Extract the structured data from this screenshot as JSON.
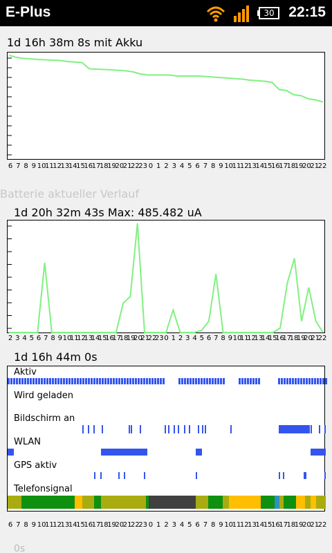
{
  "status_bar": {
    "carrier": "E-Plus",
    "battery_level": "30",
    "time": "22:15",
    "icons": [
      "wifi-icon",
      "signal-strength-icon",
      "battery-icon"
    ]
  },
  "history_chart": {
    "title": "1d 16h 38m 8s mit Akku",
    "line_color": "#80f080",
    "x_ticks": [
      "6",
      "7",
      "8",
      "9",
      "10",
      "11",
      "12",
      "13",
      "14",
      "15",
      "16",
      "17",
      "18",
      "19",
      "20",
      "21",
      "22",
      "23",
      "0",
      "1",
      "2",
      "3",
      "4",
      "5",
      "6",
      "7",
      "8",
      "9",
      "10",
      "11",
      "12",
      "13",
      "14",
      "15",
      "16",
      "17",
      "18",
      "19",
      "20",
      "21",
      "22"
    ]
  },
  "current_section": {
    "heading": "Batterie aktueller Verlauf"
  },
  "current_chart": {
    "title": "1d 20h 32m 43s Max: 485.482 uA",
    "line_color": "#80f080",
    "x_ticks": [
      "2",
      "3",
      "4",
      "5",
      "6",
      "7",
      "8",
      "9",
      "10",
      "11",
      "12",
      "13",
      "14",
      "15",
      "16",
      "17",
      "18",
      "19",
      "20",
      "21",
      "22",
      "23",
      "0",
      "1",
      "2",
      "3",
      "4",
      "5",
      "6",
      "7",
      "8",
      "9",
      "10",
      "11",
      "12",
      "13",
      "14",
      "15",
      "16",
      "17",
      "18",
      "19",
      "20",
      "21",
      "22"
    ]
  },
  "timeline": {
    "title": "1d 16h 44m 0s",
    "lanes": [
      {
        "label": "Aktiv"
      },
      {
        "label": "Wird geladen"
      },
      {
        "label": "Bildschirm an"
      },
      {
        "label": "WLAN"
      },
      {
        "label": "GPS aktiv"
      },
      {
        "label": "Telefonsignal"
      }
    ],
    "x_ticks": [
      "6",
      "7",
      "8",
      "9",
      "10",
      "11",
      "12",
      "13",
      "14",
      "15",
      "16",
      "17",
      "18",
      "19",
      "20",
      "21",
      "22",
      "23",
      "0",
      "1",
      "2",
      "3",
      "4",
      "5",
      "6",
      "7",
      "8",
      "9",
      "10",
      "11",
      "12",
      "13",
      "14",
      "15",
      "16",
      "17",
      "18",
      "19",
      "20",
      "21",
      "22"
    ],
    "colors": {
      "bar": "#3355ee",
      "signal_green": "#109010",
      "signal_olive": "#a8ac10",
      "signal_yellow": "#ffbe00",
      "signal_dark": "#404040",
      "signal_blue": "#3090c0"
    }
  },
  "next_section": {
    "label": "0s"
  },
  "chart_data": [
    {
      "type": "line",
      "title": "1d 16h 38m 8s mit Akku",
      "x": [
        0,
        1,
        2,
        4,
        7,
        8,
        10,
        11,
        14,
        16,
        17,
        18,
        19,
        21,
        22,
        23,
        26,
        28,
        30,
        32,
        33,
        35,
        36,
        37,
        38,
        39,
        40,
        41,
        42,
        43
      ],
      "values": [
        100,
        98,
        97,
        96,
        95,
        94,
        93,
        87,
        86,
        85,
        84,
        82,
        81,
        81,
        81,
        80,
        80,
        79,
        78,
        77,
        76,
        75,
        74,
        67,
        66,
        62,
        61,
        58,
        57,
        55
      ],
      "ylim": [
        0,
        100
      ],
      "grid": false
    },
    {
      "type": "line",
      "title": "1d 20h 32m 43s Max: 485.482 uA",
      "x": [
        0,
        1,
        2,
        3,
        4,
        5,
        6,
        7,
        8,
        9,
        10,
        11,
        12,
        13,
        14,
        15,
        16,
        17,
        18,
        19,
        20,
        21,
        22,
        23,
        24,
        25,
        26,
        27,
        28,
        29,
        30,
        31,
        32,
        33,
        34,
        35,
        36,
        37,
        38,
        39,
        40,
        41,
        42,
        43,
        44
      ],
      "values": [
        0,
        0,
        0,
        0,
        0,
        310,
        0,
        0,
        0,
        0,
        0,
        0,
        0,
        0,
        0,
        0,
        130,
        160,
        485,
        0,
        0,
        0,
        0,
        100,
        0,
        0,
        0,
        10,
        50,
        260,
        0,
        0,
        0,
        0,
        0,
        0,
        0,
        0,
        20,
        220,
        330,
        50,
        200,
        50,
        0
      ],
      "ylim": [
        0,
        485.482
      ],
      "grid": false
    }
  ]
}
